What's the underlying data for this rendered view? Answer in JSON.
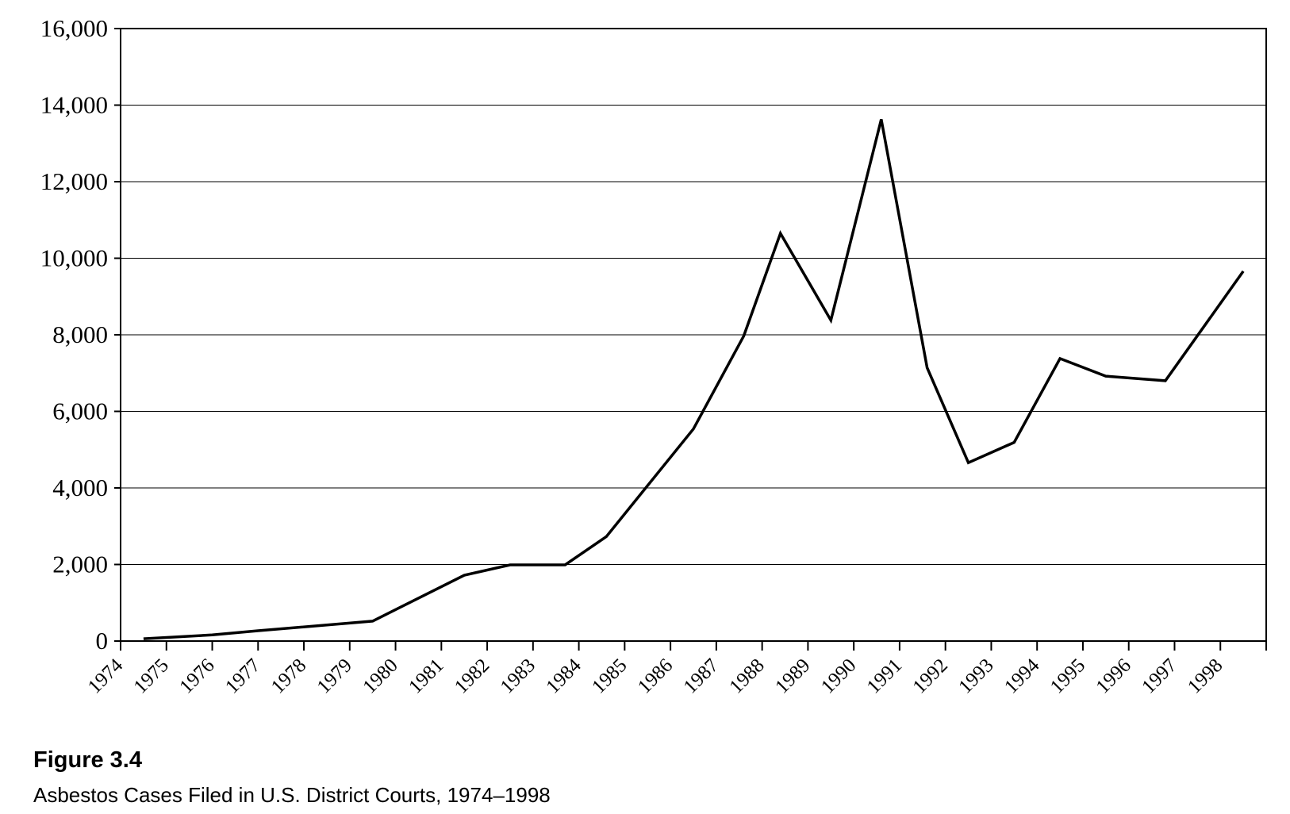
{
  "figure": {
    "label": "Figure 3.4",
    "caption": "Asbestos Cases Filed in U.S. District Courts, 1974–1998"
  },
  "colors": {
    "line": "#000000",
    "grid": "#000000",
    "background": "#ffffff"
  },
  "chart_data": {
    "type": "line",
    "title": "",
    "xlabel": "",
    "ylabel": "",
    "x_categories": [
      "1974",
      "1975",
      "1976",
      "1977",
      "1978",
      "1979",
      "1980",
      "1981",
      "1982",
      "1983",
      "1984",
      "1985",
      "1986",
      "1987",
      "1988",
      "1989",
      "1990",
      "1991",
      "1992",
      "1993",
      "1994",
      "1995",
      "1996",
      "1997",
      "1998"
    ],
    "y_ticks": [
      0,
      2000,
      4000,
      6000,
      8000,
      10000,
      12000,
      14000,
      16000
    ],
    "y_tick_labels": [
      "0",
      "2,000",
      "4,000",
      "6,000",
      "8,000",
      "10,000",
      "12,000",
      "14,000",
      "16,000"
    ],
    "ylim": [
      0,
      16000
    ],
    "grid": "horizontal",
    "legend": "none",
    "series": [
      {
        "points": [
          {
            "year": 1974.5,
            "value": 60
          },
          {
            "year": 1976.0,
            "value": 160
          },
          {
            "year": 1977.0,
            "value": 270
          },
          {
            "year": 1979.5,
            "value": 520
          },
          {
            "year": 1981.5,
            "value": 1720
          },
          {
            "year": 1982.5,
            "value": 1990
          },
          {
            "year": 1983.7,
            "value": 1990
          },
          {
            "year": 1984.6,
            "value": 2730
          },
          {
            "year": 1986.5,
            "value": 5540
          },
          {
            "year": 1987.6,
            "value": 7970
          },
          {
            "year": 1988.4,
            "value": 10650
          },
          {
            "year": 1989.5,
            "value": 8380
          },
          {
            "year": 1990.6,
            "value": 13630
          },
          {
            "year": 1991.6,
            "value": 7140
          },
          {
            "year": 1992.5,
            "value": 4660
          },
          {
            "year": 1993.5,
            "value": 5190
          },
          {
            "year": 1994.5,
            "value": 7380
          },
          {
            "year": 1995.5,
            "value": 6920
          },
          {
            "year": 1996.8,
            "value": 6800
          },
          {
            "year": 1998.5,
            "value": 9660
          }
        ]
      }
    ]
  }
}
